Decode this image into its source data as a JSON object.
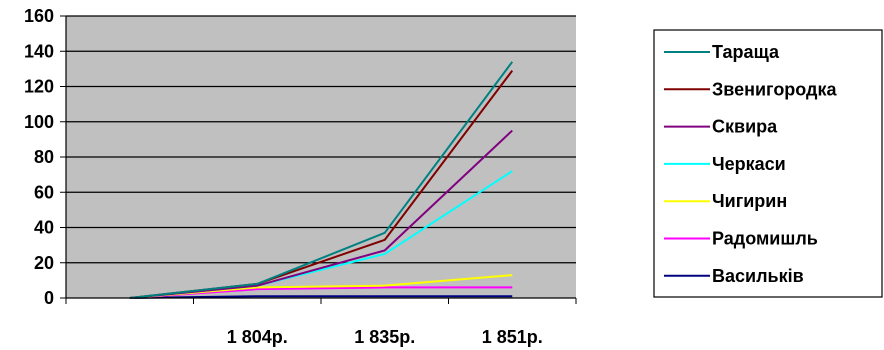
{
  "chart_data": {
    "type": "line",
    "title": "",
    "xlabel": "",
    "ylabel": "",
    "categories": [
      "",
      "1 804р.",
      "1 835р.",
      "1 851р."
    ],
    "ylim": [
      0,
      160
    ],
    "yticks": [
      0,
      20,
      40,
      60,
      80,
      100,
      120,
      140,
      160
    ],
    "grid": "horizontal",
    "plot_background": "#c0c0c0",
    "legend_position": "right",
    "series": [
      {
        "name": "Тараща",
        "color": "#008080",
        "values": [
          0,
          8,
          37,
          134
        ]
      },
      {
        "name": "Звенигородка",
        "color": "#800000",
        "values": [
          0,
          8,
          33,
          129
        ]
      },
      {
        "name": "Сквира",
        "color": "#800080",
        "values": [
          0,
          7,
          27,
          95
        ]
      },
      {
        "name": "Черкаси",
        "color": "#00ffff",
        "values": [
          0,
          7,
          25,
          72
        ]
      },
      {
        "name": "Чигирин",
        "color": "#ffff00",
        "values": [
          0,
          6,
          7,
          13
        ]
      },
      {
        "name": "Радомишль",
        "color": "#ff00ff",
        "values": [
          0,
          5,
          6,
          6
        ]
      },
      {
        "name": "Васильків",
        "color": "#000080",
        "values": [
          0,
          1,
          1,
          1
        ]
      }
    ]
  }
}
